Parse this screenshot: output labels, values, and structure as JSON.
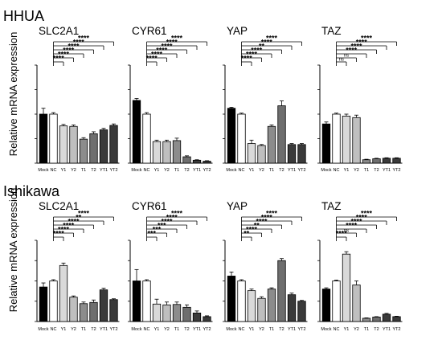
{
  "figure": {
    "y_label": "Relative mRNA expression",
    "categories": [
      "Mock",
      "NC",
      "Y1",
      "Y2",
      "T1",
      "T2",
      "YT1",
      "YT2"
    ],
    "bar_colors": [
      "#000000",
      "#ffffff",
      "#d9d9d9",
      "#bfbfbf",
      "#8c8c8c",
      "#6e6e6e",
      "#3a3a3a",
      "#3a3a3a"
    ],
    "rows": [
      {
        "title": "HHUA"
      },
      {
        "title": "Ishikawa"
      }
    ]
  },
  "chart_data": [
    {
      "type": "bar",
      "row": 0,
      "title": "SLC2A1",
      "categories": [
        "Mock",
        "NC",
        "Y1",
        "Y2",
        "T1",
        "T2",
        "YT1",
        "YT2"
      ],
      "values": [
        1.0,
        1.0,
        0.76,
        0.75,
        0.49,
        0.6,
        0.68,
        0.77
      ],
      "errors": [
        0.12,
        0.03,
        0.03,
        0.03,
        0.03,
        0.04,
        0.03,
        0.03
      ],
      "ylim": [
        0,
        2
      ],
      "significance": [
        "****",
        "****",
        "****",
        "****",
        "****",
        "****"
      ]
    },
    {
      "type": "bar",
      "row": 0,
      "title": "CYR61",
      "categories": [
        "Mock",
        "NC",
        "Y1",
        "Y2",
        "T1",
        "T2",
        "YT1",
        "YT2"
      ],
      "values": [
        1.28,
        1.0,
        0.44,
        0.44,
        0.46,
        0.13,
        0.06,
        0.04
      ],
      "errors": [
        0.04,
        0.03,
        0.03,
        0.03,
        0.05,
        0.02,
        0.01,
        0.01
      ],
      "ylim": [
        0,
        2
      ],
      "significance": [
        "****",
        "****",
        "****",
        "****",
        "****",
        "****"
      ]
    },
    {
      "type": "bar",
      "row": 0,
      "title": "YAP",
      "categories": [
        "Mock",
        "NC",
        "Y1",
        "Y2",
        "T1",
        "T2",
        "YT1",
        "YT2"
      ],
      "values": [
        1.12,
        1.0,
        0.4,
        0.36,
        0.75,
        1.17,
        0.38,
        0.38
      ],
      "errors": [
        0.02,
        0.02,
        0.07,
        0.02,
        0.03,
        0.1,
        0.02,
        0.02
      ],
      "ylim": [
        0,
        2
      ],
      "significance": [
        "****",
        "****",
        "****",
        "**",
        "****",
        "****"
      ]
    },
    {
      "type": "bar",
      "row": 0,
      "title": "TAZ",
      "categories": [
        "Mock",
        "NC",
        "Y1",
        "Y2",
        "T1",
        "T2",
        "YT1",
        "YT2"
      ],
      "values": [
        0.8,
        1.0,
        0.96,
        0.93,
        0.07,
        0.09,
        0.1,
        0.1
      ],
      "errors": [
        0.04,
        0.02,
        0.04,
        0.05,
        0.01,
        0.01,
        0.01,
        0.01
      ],
      "ylim": [
        0,
        2
      ],
      "significance": [
        "ns",
        "ns",
        "****",
        "****",
        "****",
        "****"
      ]
    },
    {
      "type": "bar",
      "row": 1,
      "title": "SLC2A1",
      "categories": [
        "Mock",
        "NC",
        "Y1",
        "Y2",
        "T1",
        "T2",
        "YT1",
        "YT2"
      ],
      "values": [
        0.85,
        1.0,
        1.38,
        0.6,
        0.44,
        0.47,
        0.78,
        0.54
      ],
      "errors": [
        0.1,
        0.03,
        0.06,
        0.03,
        0.04,
        0.06,
        0.04,
        0.02
      ],
      "ylim": [
        0,
        2
      ],
      "significance": [
        "****",
        "****",
        "****",
        "****",
        "**",
        "****"
      ]
    },
    {
      "type": "bar",
      "row": 1,
      "title": "CYR61",
      "categories": [
        "Mock",
        "NC",
        "Y1",
        "Y2",
        "T1",
        "T2",
        "YT1",
        "YT2"
      ],
      "values": [
        1.0,
        1.0,
        0.43,
        0.41,
        0.42,
        0.35,
        0.21,
        0.12
      ],
      "errors": [
        0.28,
        0.03,
        0.12,
        0.07,
        0.06,
        0.06,
        0.05,
        0.02
      ],
      "ylim": [
        0,
        2
      ],
      "significance": [
        "***",
        "***",
        "***",
        "****",
        "****",
        "****"
      ]
    },
    {
      "type": "bar",
      "row": 1,
      "title": "YAP",
      "categories": [
        "Mock",
        "NC",
        "Y1",
        "Y2",
        "T1",
        "T2",
        "YT1",
        "YT2"
      ],
      "values": [
        1.12,
        1.0,
        0.76,
        0.57,
        0.8,
        1.5,
        0.66,
        0.5
      ],
      "errors": [
        0.1,
        0.03,
        0.04,
        0.04,
        0.03,
        0.05,
        0.04,
        0.02
      ],
      "ylim": [
        0,
        2
      ],
      "significance": [
        "**",
        "****",
        "**",
        "****",
        "****",
        "****"
      ]
    },
    {
      "type": "bar",
      "row": 1,
      "title": "TAZ",
      "categories": [
        "Mock",
        "NC",
        "Y1",
        "Y2",
        "T1",
        "T2",
        "YT1",
        "YT2"
      ],
      "values": [
        0.8,
        1.0,
        1.66,
        0.9,
        0.08,
        0.11,
        0.18,
        0.12
      ],
      "errors": [
        0.03,
        0.02,
        0.06,
        0.1,
        0.01,
        0.01,
        0.02,
        0.01
      ],
      "ylim": [
        0,
        2
      ],
      "significance": [
        "****",
        "ns",
        "****",
        "****",
        "****",
        "****"
      ]
    }
  ]
}
